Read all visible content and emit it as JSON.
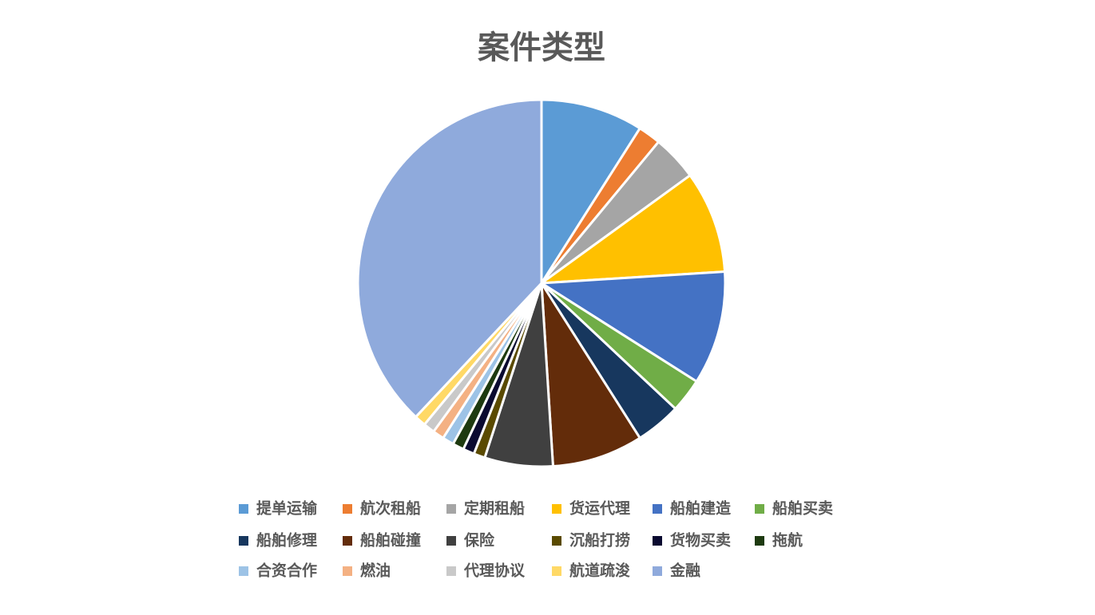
{
  "chart_data": {
    "type": "pie",
    "title": "案件类型",
    "categories": [
      "提单运输",
      "航次租船",
      "定期租船",
      "货运代理",
      "船舶建造",
      "船舶买卖",
      "船舶修理",
      "船舶碰撞",
      "保险",
      "沉船打捞",
      "货物买卖",
      "拖航",
      "合资合作",
      "燃油",
      "代理协议",
      "航道疏浚",
      "金融"
    ],
    "values": [
      9,
      2,
      4,
      9,
      10,
      3,
      4,
      8,
      6,
      1,
      1,
      1,
      1,
      1,
      1,
      1,
      38
    ],
    "colors": [
      "#5b9bd5",
      "#ed7d31",
      "#a5a5a5",
      "#ffc000",
      "#4472c4",
      "#70ad47",
      "#17375e",
      "#632c0a",
      "#404040",
      "#5a4a00",
      "#0a0a30",
      "#1e3a10",
      "#9dc3e6",
      "#f4b183",
      "#c9c9c9",
      "#ffd966",
      "#8faadc"
    ],
    "legend": "bottom"
  }
}
